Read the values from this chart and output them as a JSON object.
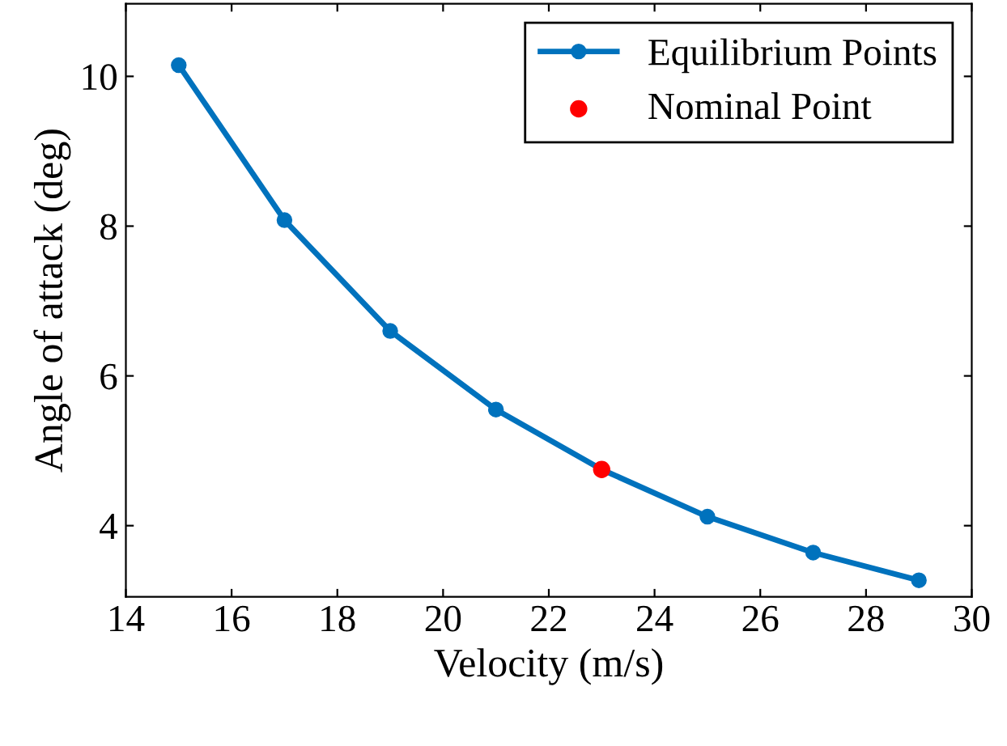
{
  "chart_data": {
    "type": "line",
    "xlabel": "Velocity (m/s)",
    "ylabel": "Angle of attack (deg)",
    "xlim": [
      14,
      30
    ],
    "xticks": [
      14,
      16,
      18,
      20,
      22,
      24,
      26,
      28,
      30
    ],
    "ylim": [
      3.05,
      10.97
    ],
    "yticks": [
      4,
      6,
      8,
      10
    ],
    "series": [
      {
        "name": "Equilibrium Points",
        "color": "#0072bd",
        "x": [
          15,
          17,
          19,
          21,
          23,
          25,
          27,
          29
        ],
        "values": [
          10.15,
          8.08,
          6.6,
          5.55,
          4.75,
          4.12,
          3.64,
          3.27
        ]
      },
      {
        "name": "Nominal Point",
        "type": "scatter",
        "color": "#ff0000",
        "x": [
          23
        ],
        "values": [
          4.75
        ]
      }
    ],
    "marker": "circle",
    "line_style": "solid",
    "grid": false,
    "legend": "top right"
  }
}
